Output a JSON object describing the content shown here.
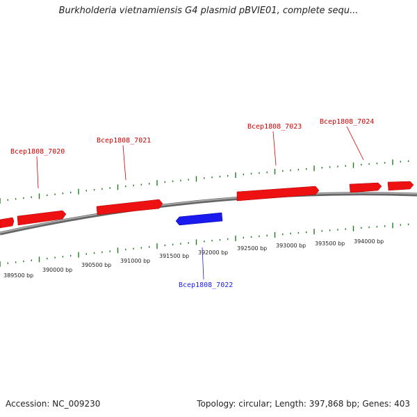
{
  "title": "Burkholderia vietnamiensis G4 plasmid pBVIE01, complete sequ...",
  "footer": {
    "accession": "Accession: NC_009230",
    "topology": "Topology: circular; Length: 397,868 bp; Genes: 403"
  },
  "colors": {
    "forward": "#ee1111",
    "reverse": "#1a1aee",
    "ticks": "#1f7a1f",
    "backbone": "#8a8a8a"
  },
  "bp_labels": [
    "389500 bp",
    "390000 bp",
    "390500 bp",
    "391000 bp",
    "391500 bp",
    "392000 bp",
    "392500 bp",
    "393000 bp",
    "393500 bp",
    "394000 bp"
  ],
  "genes": [
    {
      "label": "Bcep1808_7020",
      "strand": "forward"
    },
    {
      "label": "Bcep1808_7021",
      "strand": "forward"
    },
    {
      "label": "Bcep1808_7022",
      "strand": "reverse"
    },
    {
      "label": "Bcep1808_7023",
      "strand": "forward"
    },
    {
      "label": "Bcep1808_7024",
      "strand": "forward"
    }
  ]
}
